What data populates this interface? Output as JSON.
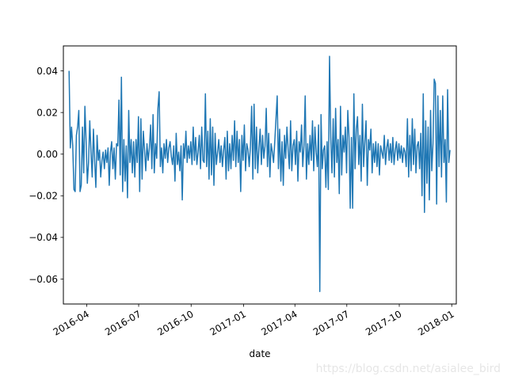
{
  "chart_data": {
    "type": "line",
    "xlabel": "date",
    "ylabel": "",
    "x_start": "2016-03-01",
    "x_end": "2017-12-29",
    "xlim": [
      "2016-02-20",
      "2018-01-09"
    ],
    "ylim": [
      -0.072,
      0.052
    ],
    "y_ticks": [
      -0.06,
      -0.04,
      -0.02,
      0.0,
      0.02,
      0.04
    ],
    "y_tick_labels": [
      "−0.06",
      "−0.04",
      "−0.02",
      "0.00",
      "0.02",
      "0.04"
    ],
    "x_ticks": [
      "2016-04-01",
      "2016-07-01",
      "2016-10-01",
      "2017-01-01",
      "2017-04-01",
      "2017-07-01",
      "2017-10-01",
      "2018-01-01"
    ],
    "x_tick_labels": [
      "2016-04",
      "2016-07",
      "2016-10",
      "2017-01",
      "2017-04",
      "2017-07",
      "2017-10",
      "2018-01"
    ],
    "grid": false,
    "legend": "none",
    "series": [
      {
        "color": "#1f77b4",
        "values": [
          0.04,
          0.003,
          0.013,
          0.004,
          -0.017,
          -0.018,
          0.009,
          0.013,
          0.021,
          -0.018,
          -0.015,
          0.013,
          -0.009,
          0.023,
          0.006,
          -0.014,
          -0.004,
          0.016,
          0.001,
          -0.011,
          0.012,
          -0.003,
          -0.016,
          0.009,
          -0.003,
          0.002,
          -0.011,
          -0.003,
          0.001,
          -0.007,
          0.002,
          -0.004,
          0.003,
          -0.015,
          0.001,
          0.006,
          -0.007,
          0.003,
          -0.012,
          0.005,
          0.004,
          0.026,
          -0.01,
          0.037,
          -0.018,
          0.007,
          -0.013,
          0.004,
          -0.021,
          0.021,
          -0.004,
          0.007,
          -0.009,
          0.006,
          -0.011,
          0.007,
          -0.004,
          0.018,
          -0.018,
          0.017,
          -0.012,
          0.011,
          0.002,
          -0.008,
          0.005,
          -0.003,
          0.003,
          0.014,
          -0.007,
          0.019,
          -0.009,
          0.005,
          -0.002,
          0.022,
          0.03,
          -0.006,
          0.003,
          -0.009,
          0.005,
          -0.002,
          0.007,
          -0.004,
          0.003,
          0.006,
          -0.001,
          -0.005,
          0.004,
          -0.013,
          0.01,
          -0.005,
          0.001,
          -0.008,
          0.004,
          -0.022,
          0.005,
          -0.002,
          0.011,
          -0.004,
          0.004,
          -0.002,
          0.006,
          -0.005,
          0.013,
          -0.003,
          0.008,
          -0.005,
          0.001,
          0.009,
          -0.007,
          0.013,
          -0.003,
          -0.004,
          0.029,
          -0.006,
          0.011,
          -0.012,
          0.017,
          -0.01,
          0.013,
          -0.015,
          0.01,
          -0.005,
          0.001,
          0.007,
          -0.004,
          0.004,
          -0.006,
          0.002,
          0.008,
          -0.012,
          0.011,
          -0.008,
          0.005,
          -0.007,
          0.009,
          -0.003,
          0.016,
          -0.006,
          0.011,
          -0.004,
          0.007,
          -0.018,
          0.009,
          -0.003,
          0.014,
          -0.008,
          0.005,
          0.002,
          -0.006,
          0.004,
          0.023,
          -0.012,
          0.024,
          -0.007,
          0.013,
          -0.009,
          0.003,
          0.012,
          -0.005,
          0.009,
          -0.002,
          0.004,
          0.022,
          -0.006,
          0.01,
          -0.011,
          0.005,
          0.001,
          -0.004,
          0.006,
          0.017,
          0.028,
          -0.007,
          0.012,
          -0.013,
          0.006,
          -0.015,
          0.009,
          -0.002,
          0.013,
          0.002,
          -0.007,
          0.016,
          -0.008,
          0.004,
          0.007,
          -0.005,
          0.011,
          -0.013,
          0.006,
          0.001,
          0.014,
          -0.006,
          0.004,
          0.028,
          -0.012,
          0.005,
          -0.005,
          0.009,
          -0.003,
          0.016,
          -0.008,
          0.013,
          0.001,
          -0.006,
          0.014,
          -0.066,
          0.019,
          -0.007,
          0.002,
          0.004,
          -0.016,
          0.006,
          -0.017,
          0.047,
          0.008,
          -0.009,
          0.017,
          -0.011,
          0.022,
          -0.004,
          0.007,
          -0.019,
          0.023,
          -0.01,
          0.009,
          0.001,
          0.013,
          -0.009,
          0.021,
          0.008,
          -0.026,
          0.008,
          -0.026,
          0.029,
          -0.007,
          0.012,
          0.018,
          -0.005,
          0.009,
          -0.013,
          0.024,
          -0.006,
          0.006,
          0.016,
          -0.015,
          0.007,
          0.002,
          0.012,
          -0.009,
          0.005,
          -0.004,
          0.006,
          -0.006,
          0.005,
          -0.01,
          0.004,
          0.001,
          -0.002,
          0.009,
          -0.005,
          0.003,
          0.007,
          -0.003,
          0.005,
          -0.004,
          0.008,
          -0.005,
          0.002,
          0.006,
          -0.003,
          0.005,
          -0.002,
          0.004,
          -0.004,
          0.003,
          0.001,
          -0.006,
          0.017,
          -0.011,
          0.009,
          -0.008,
          0.017,
          -0.005,
          0.012,
          -0.009,
          0.004,
          0.006,
          -0.007,
          0.01,
          -0.02,
          0.029,
          -0.028,
          0.016,
          -0.014,
          0.013,
          -0.022,
          0.021,
          -0.008,
          0.005,
          0.036,
          0.034,
          -0.024,
          0.028,
          -0.006,
          0.021,
          -0.011,
          0.028,
          -0.004,
          0.007,
          -0.023,
          0.031,
          -0.004,
          0.002
        ]
      }
    ]
  },
  "watermark": "https://blog.csdn.net/asialee_bird"
}
